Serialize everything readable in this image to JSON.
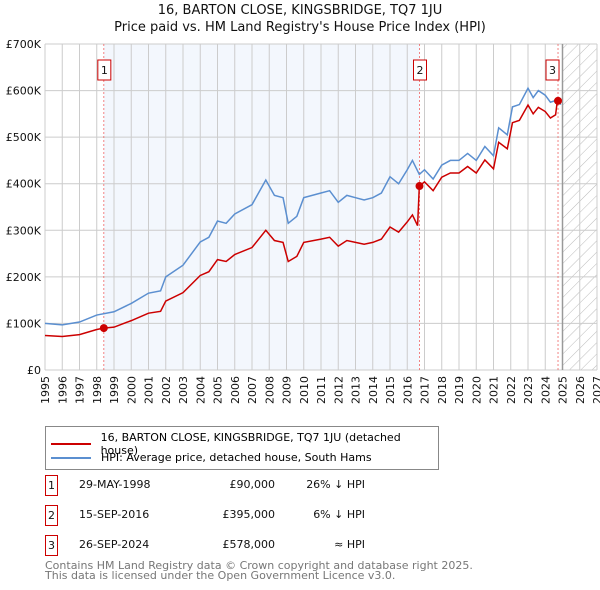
{
  "chart_data": {
    "type": "line",
    "title": "16, BARTON CLOSE, KINGSBRIDGE, TQ7 1JU",
    "subtitle": "Price paid vs. HM Land Registry's House Price Index (HPI)",
    "xlim": [
      1995,
      2027
    ],
    "ylim": [
      0,
      700000
    ],
    "x_ticks": [
      "1995",
      "1996",
      "1997",
      "1998",
      "1999",
      "2000",
      "2001",
      "2002",
      "2003",
      "2004",
      "2005",
      "2006",
      "2007",
      "2008",
      "2009",
      "2010",
      "2011",
      "2012",
      "2013",
      "2014",
      "2015",
      "2016",
      "2017",
      "2018",
      "2019",
      "2020",
      "2021",
      "2022",
      "2023",
      "2024",
      "2025",
      "2026",
      "2027"
    ],
    "y_ticks": [
      {
        "v": 0,
        "l": "£0"
      },
      {
        "v": 100000,
        "l": "£100K"
      },
      {
        "v": 200000,
        "l": "£200K"
      },
      {
        "v": 300000,
        "l": "£300K"
      },
      {
        "v": 400000,
        "l": "£400K"
      },
      {
        "v": 500000,
        "l": "£500K"
      },
      {
        "v": 600000,
        "l": "£600K"
      },
      {
        "v": 700000,
        "l": "£700K"
      }
    ],
    "grid": true,
    "forecast_start": 2025,
    "series": [
      {
        "name": "HPI: Average price, detached house, South Hams",
        "color": "#5b8fd0",
        "x": [
          1995,
          1996,
          1997,
          1998,
          1999,
          2000,
          2001,
          2001.7,
          2002,
          2003,
          2004,
          2004.5,
          2005,
          2005.5,
          2006,
          2007,
          2007.8,
          2008.3,
          2008.8,
          2009.1,
          2009.6,
          2010,
          2011,
          2011.5,
          2012,
          2012.5,
          2013,
          2013.5,
          2014,
          2014.5,
          2015,
          2015.5,
          2016,
          2016.3,
          2016.7,
          2017,
          2017.5,
          2018,
          2018.5,
          2019,
          2019.5,
          2020,
          2020.5,
          2021,
          2021.3,
          2021.8,
          2022.1,
          2022.5,
          2023,
          2023.3,
          2023.6,
          2024,
          2024.3,
          2024.7,
          2024.9
        ],
        "values": [
          100000,
          97000,
          103000,
          118000,
          125000,
          143000,
          165000,
          170000,
          200000,
          225000,
          275000,
          285000,
          320000,
          315000,
          335000,
          355000,
          408000,
          375000,
          370000,
          315000,
          330000,
          370000,
          380000,
          385000,
          360000,
          375000,
          370000,
          365000,
          370000,
          380000,
          415000,
          400000,
          430000,
          450000,
          420000,
          430000,
          410000,
          440000,
          450000,
          450000,
          465000,
          450000,
          480000,
          460000,
          520000,
          505000,
          565000,
          570000,
          605000,
          585000,
          600000,
          590000,
          575000,
          580000,
          570000
        ]
      },
      {
        "name": "16, BARTON CLOSE, KINGSBRIDGE, TQ7 1JU (detached house)",
        "color": "#cc0000",
        "x": [
          1995,
          1996,
          1997,
          1998,
          1998.4,
          1999,
          2000,
          2001,
          2001.7,
          2002,
          2003,
          2004,
          2004.5,
          2005,
          2005.5,
          2006,
          2007,
          2007.8,
          2008.3,
          2008.8,
          2009.1,
          2009.6,
          2010,
          2011,
          2011.5,
          2012,
          2012.5,
          2013,
          2013.5,
          2014,
          2014.5,
          2015,
          2015.5,
          2016,
          2016.3,
          2016.6,
          2016.7,
          2017,
          2017.5,
          2018,
          2018.5,
          2019,
          2019.5,
          2020,
          2020.5,
          2021,
          2021.3,
          2021.8,
          2022.1,
          2022.5,
          2023,
          2023.3,
          2023.6,
          2024,
          2024.3,
          2024.6,
          2024.7
        ],
        "values": [
          74000,
          72000,
          76000,
          87000,
          90000,
          92000,
          106000,
          122000,
          126000,
          148000,
          166000,
          203000,
          211000,
          237000,
          233000,
          248000,
          263000,
          300000,
          278000,
          274000,
          233000,
          244000,
          274000,
          281000,
          285000,
          266000,
          278000,
          274000,
          270000,
          274000,
          281000,
          307000,
          296000,
          318000,
          333000,
          310000,
          395000,
          404000,
          385000,
          414000,
          423000,
          423000,
          437000,
          423000,
          451000,
          432000,
          489000,
          475000,
          531000,
          536000,
          569000,
          550000,
          564000,
          555000,
          541000,
          548000,
          578000
        ]
      }
    ],
    "sales": [
      {
        "id": "1",
        "x": 1998.41,
        "value": 90000,
        "date": "29-MAY-1998",
        "price": "£90,000",
        "vs_hpi": "26% ↓ HPI"
      },
      {
        "id": "2",
        "x": 2016.71,
        "value": 395000,
        "date": "15-SEP-2016",
        "price": "£395,000",
        "vs_hpi": "6% ↓ HPI"
      },
      {
        "id": "3",
        "x": 2024.74,
        "value": 578000,
        "date": "26-SEP-2024",
        "price": "£578,000",
        "vs_hpi": "≈ HPI"
      }
    ]
  },
  "footer": [
    "Contains HM Land Registry data © Crown copyright and database right 2025.",
    "This data is licensed under the Open Government Licence v3.0."
  ]
}
